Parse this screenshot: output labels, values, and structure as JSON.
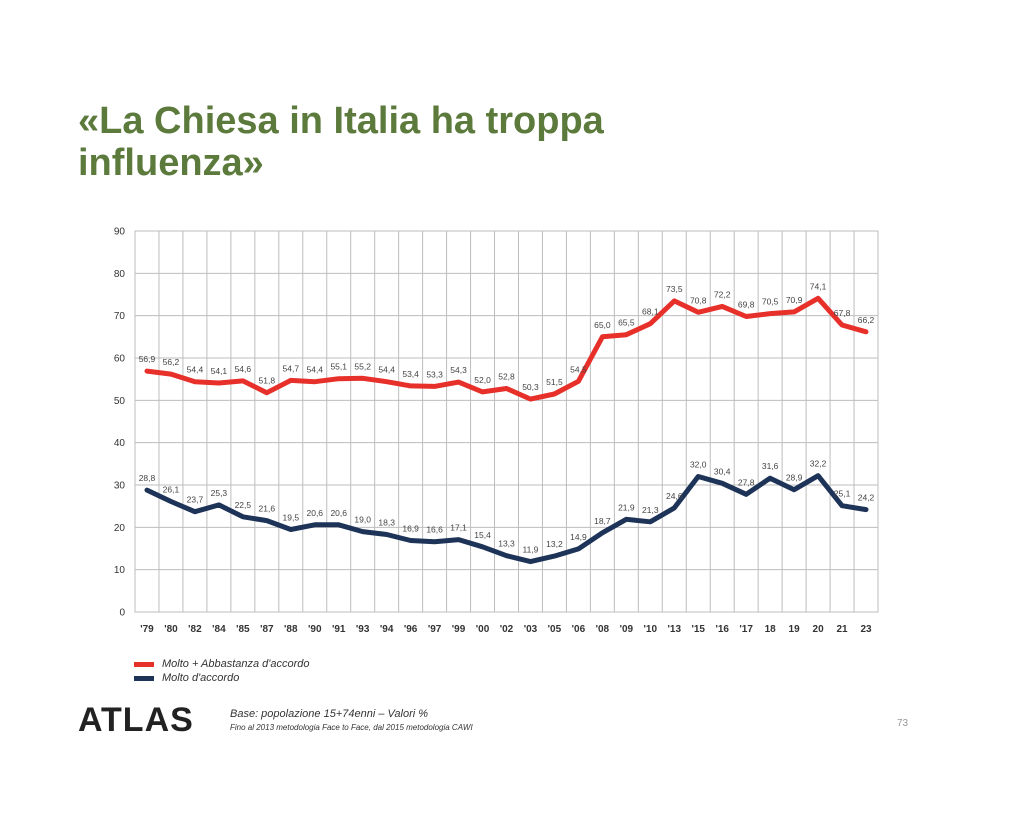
{
  "slide": {
    "title": "«La Chiesa in Italia ha troppa influenza»",
    "logo": "ATLAS",
    "base_note": "Base: popolazione 15+74enni – Valori %",
    "method_note": "Fino al 2013 metodologia  Face to Face, dal 2015 metodologia  CAWI",
    "page_number": "73"
  },
  "chart_data": {
    "type": "line",
    "title": "",
    "xlabel": "",
    "ylabel": "",
    "ylim": [
      0,
      90
    ],
    "yticks": [
      0,
      10,
      20,
      30,
      40,
      50,
      60,
      70,
      80,
      90
    ],
    "grid": true,
    "legend_position": "bottom-left",
    "categories": [
      "'79",
      "'80",
      "'82",
      "'84",
      "'85",
      "'87",
      "'88",
      "'90",
      "'91",
      "'93",
      "'94",
      "'96",
      "'97",
      "'99",
      "'00",
      "'02",
      "'03",
      "'05",
      "'06",
      "'08",
      "'09",
      "'10",
      "'13",
      "'15",
      "'16",
      "'17",
      "18",
      "19",
      "20",
      "21",
      "23"
    ],
    "series": [
      {
        "name": "Molto + Abbastanza d'accordo",
        "color": "#e8302a",
        "values": [
          56.9,
          56.2,
          54.4,
          54.1,
          54.6,
          51.8,
          54.7,
          54.4,
          55.1,
          55.2,
          54.4,
          53.4,
          53.3,
          54.3,
          52.0,
          52.8,
          50.3,
          51.5,
          54.5,
          65.0,
          65.5,
          68.1,
          73.5,
          70.8,
          72.2,
          69.8,
          70.5,
          70.9,
          74.1,
          67.8,
          66.2
        ]
      },
      {
        "name": "Molto d'accordo",
        "color": "#1e3358",
        "values": [
          28.8,
          26.1,
          23.7,
          25.3,
          22.5,
          21.6,
          19.5,
          20.6,
          20.6,
          19.0,
          18.3,
          16.9,
          16.6,
          17.1,
          15.4,
          13.3,
          11.9,
          13.2,
          14.9,
          18.7,
          21.9,
          21.3,
          24.6,
          32.0,
          30.4,
          27.8,
          31.6,
          28.9,
          32.2,
          25.1,
          24.2
        ]
      }
    ]
  }
}
